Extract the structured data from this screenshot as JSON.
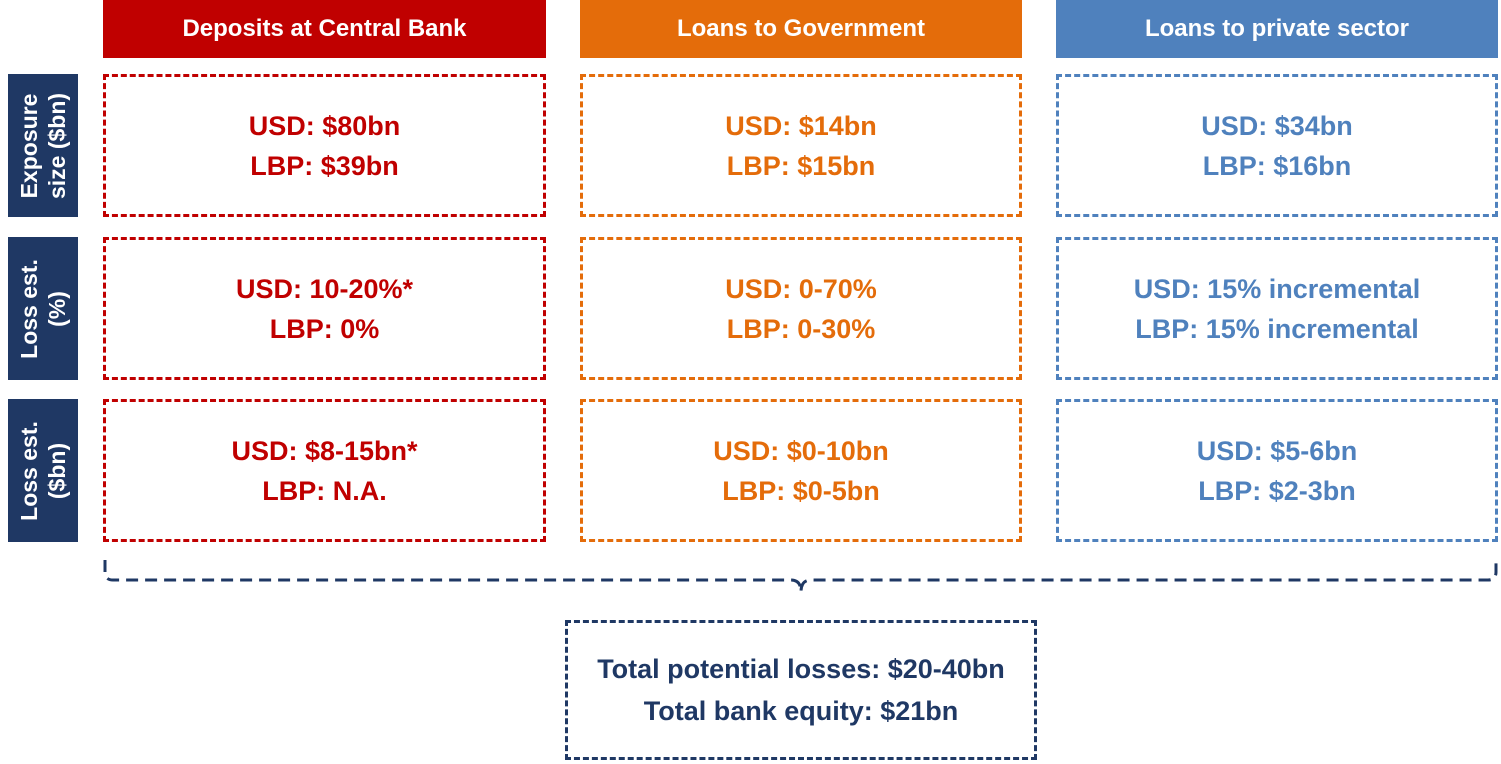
{
  "columns": [
    {
      "title": "Deposits at Central Bank",
      "color": "#c00000"
    },
    {
      "title": "Loans to Government",
      "color": "#e46c0a"
    },
    {
      "title": "Loans to private sector",
      "color": "#4f81bd"
    }
  ],
  "rows": [
    {
      "label_line1": "Exposure",
      "label_line2": "size ($bn)"
    },
    {
      "label_line1": "Loss est.",
      "label_line2": "(%)"
    },
    {
      "label_line1": "Loss est.",
      "label_line2": "($bn)"
    }
  ],
  "cells": [
    [
      {
        "usd": "USD: $80bn",
        "lbp": "LBP: $39bn"
      },
      {
        "usd": "USD: $14bn",
        "lbp": "LBP: $15bn"
      },
      {
        "usd": "USD: $34bn",
        "lbp": "LBP: $16bn"
      }
    ],
    [
      {
        "usd": "USD: 10-20%*",
        "lbp": "LBP: 0%"
      },
      {
        "usd": "USD: 0-70%",
        "lbp": "LBP: 0-30%"
      },
      {
        "usd": "USD: 15% incremental",
        "lbp": "LBP: 15% incremental"
      }
    ],
    [
      {
        "usd": "USD: $8-15bn*",
        "lbp": "LBP: N.A."
      },
      {
        "usd": "USD: $0-10bn",
        "lbp": "LBP: $0-5bn"
      },
      {
        "usd": "USD: $5-6bn",
        "lbp": "LBP: $2-3bn"
      }
    ]
  ],
  "summary": {
    "line1": "Total potential losses: $20-40bn",
    "line2": "Total bank equity: $21bn"
  },
  "colors": {
    "row_label_bg": "#1f3864",
    "summary": "#1f3864",
    "bracket": "#1f3864"
  }
}
